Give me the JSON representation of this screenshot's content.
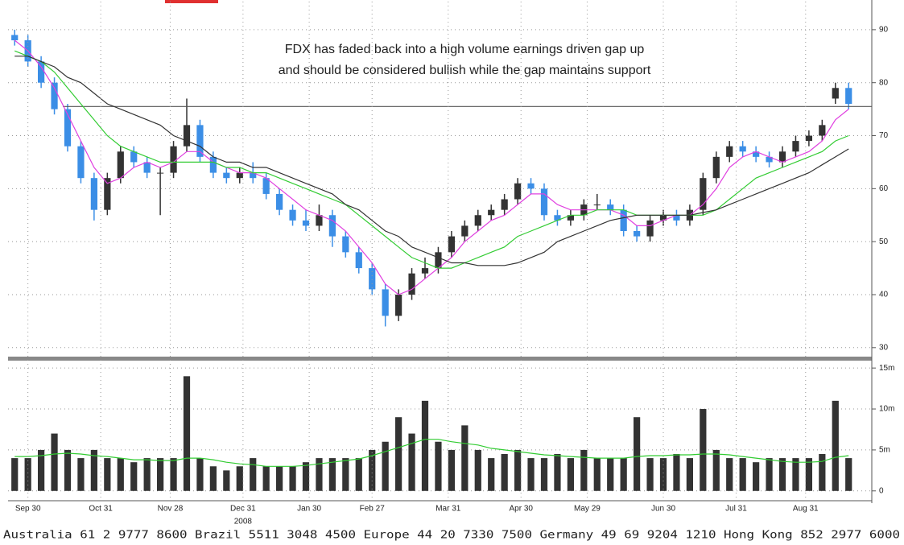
{
  "footer": "Australia 61 2 9777 8600 Brazil 5511 3048 4500 Europe 44 20 7330 7500 Germany 49 69 9204 1210 Hong Kong 852 2977 6000",
  "chart_data": [
    {
      "type": "candlestick",
      "annotation": [
        "FDX has faded back into a high volume earnings driven gap up",
        "and should be considered bullish while the gap maintains support"
      ],
      "x": [
        -4,
        0,
        4,
        8,
        12,
        16,
        20,
        24,
        28,
        32,
        36,
        40,
        44,
        48,
        52,
        56,
        60,
        64,
        68,
        72,
        76,
        80,
        84,
        88,
        92,
        96,
        100,
        104,
        108,
        112,
        116,
        120,
        124,
        128,
        132,
        136,
        140,
        144,
        148,
        152,
        156,
        160,
        164,
        168,
        172,
        176,
        180,
        184,
        188,
        192,
        196,
        200,
        204,
        208,
        212,
        216,
        220,
        224,
        228,
        232,
        236,
        240,
        244,
        248
      ],
      "open": [
        89,
        88,
        84,
        80,
        75,
        68,
        62,
        56,
        62,
        67,
        65,
        63,
        63,
        68,
        72,
        66,
        63,
        62,
        63,
        62,
        59,
        56,
        54,
        53,
        55,
        51,
        48,
        45,
        41,
        36,
        40,
        44,
        45,
        48,
        51,
        53,
        55,
        56,
        58,
        61,
        60,
        55,
        54,
        55,
        57,
        57,
        56,
        52,
        51,
        54,
        55,
        54,
        56,
        62,
        66,
        68,
        67,
        66,
        65,
        67,
        69,
        70,
        77,
        79
      ],
      "high": [
        90,
        89,
        85,
        81,
        76,
        69,
        63,
        63,
        68,
        68,
        66,
        64,
        69,
        77,
        73,
        67,
        64,
        64,
        65,
        63,
        60,
        57,
        56,
        57,
        56,
        52,
        49,
        46,
        42,
        41,
        45,
        47,
        49,
        52,
        54,
        56,
        57,
        59,
        62,
        62,
        61,
        56,
        56,
        58,
        59,
        58,
        57,
        53,
        55,
        56,
        56,
        57,
        63,
        67,
        69,
        69,
        68,
        67,
        68,
        70,
        71,
        73,
        80,
        80
      ],
      "low": [
        87,
        83,
        79,
        74,
        67,
        61,
        54,
        55,
        61,
        64,
        62,
        55,
        62,
        67,
        65,
        62,
        61,
        61,
        61,
        58,
        55,
        53,
        52,
        52,
        49,
        47,
        44,
        40,
        34,
        35,
        39,
        43,
        44,
        47,
        50,
        52,
        54,
        55,
        57,
        59,
        54,
        53,
        53,
        54,
        56,
        55,
        51,
        50,
        50,
        53,
        53,
        53,
        55,
        61,
        65,
        66,
        65,
        64,
        64,
        66,
        68,
        69,
        76,
        75
      ],
      "close": [
        88,
        84,
        80,
        75,
        68,
        62,
        56,
        62,
        67,
        65,
        63,
        63,
        68,
        72,
        66,
        63,
        62,
        63,
        62,
        59,
        56,
        54,
        53,
        55,
        51,
        48,
        45,
        41,
        36,
        40,
        44,
        45,
        48,
        51,
        53,
        55,
        56,
        58,
        61,
        60,
        55,
        54,
        55,
        57,
        57,
        56,
        52,
        51,
        54,
        55,
        54,
        56,
        62,
        66,
        68,
        67,
        66,
        65,
        67,
        69,
        70,
        72,
        79,
        76
      ],
      "up_color": "#333333",
      "down_color": "#3b8ee6",
      "series": [
        {
          "color": "#e040e0",
          "values": [
            88,
            86,
            83,
            79,
            74,
            69,
            64,
            61,
            62,
            64,
            65,
            64,
            65,
            67,
            67,
            65,
            64,
            63,
            63,
            62,
            60,
            58,
            56,
            55,
            54,
            52,
            49,
            46,
            42,
            40,
            41,
            43,
            45,
            47,
            50,
            52,
            54,
            55,
            57,
            59,
            59,
            57,
            56,
            56,
            56,
            56,
            55,
            53,
            53,
            54,
            55,
            55,
            57,
            60,
            64,
            66,
            67,
            66,
            65,
            66,
            67,
            69,
            73,
            75
          ]
        },
        {
          "color": "#33cc33",
          "values": [
            86,
            85,
            84,
            82,
            79,
            76,
            73,
            70,
            68,
            67,
            66,
            65,
            65,
            65,
            65,
            65,
            64,
            64,
            63,
            63,
            62,
            61,
            60,
            59,
            58,
            57,
            55,
            53,
            51,
            49,
            47,
            46,
            45,
            45,
            46,
            47,
            48,
            49,
            51,
            52,
            53,
            54,
            55,
            55,
            56,
            56,
            56,
            55,
            55,
            55,
            55,
            55,
            55,
            56,
            58,
            60,
            62,
            63,
            64,
            65,
            66,
            67,
            69,
            70
          ]
        },
        {
          "color": "#333333",
          "values": [
            85,
            85,
            84,
            83,
            81,
            80,
            78,
            76,
            75,
            74,
            73,
            72,
            70,
            69,
            68,
            66,
            65,
            65,
            64,
            64,
            63,
            62,
            61,
            60,
            59,
            57,
            56,
            54,
            52,
            51,
            49,
            48,
            47,
            46,
            46,
            45.5,
            45.5,
            45.5,
            46,
            47,
            48,
            50,
            51,
            52,
            53,
            54,
            54.5,
            55,
            55,
            55,
            55,
            55,
            55.5,
            56,
            57,
            58,
            59,
            60,
            61,
            62,
            63,
            64.5,
            66,
            67.5
          ]
        }
      ],
      "hline": 75.5,
      "xlim": [
        -6,
        255
      ],
      "ylim": [
        28.3,
        95.3
      ],
      "yticks": [
        30,
        40,
        50,
        60,
        70,
        80,
        90
      ],
      "grid": true
    },
    {
      "type": "bar",
      "x": [
        -4,
        0,
        4,
        8,
        12,
        16,
        20,
        24,
        28,
        32,
        36,
        40,
        44,
        48,
        52,
        56,
        60,
        64,
        68,
        72,
        76,
        80,
        84,
        88,
        92,
        96,
        100,
        104,
        108,
        112,
        116,
        120,
        124,
        128,
        132,
        136,
        140,
        144,
        148,
        152,
        156,
        160,
        164,
        168,
        172,
        176,
        180,
        184,
        188,
        192,
        196,
        200,
        204,
        208,
        212,
        216,
        220,
        224,
        228,
        232,
        236,
        240,
        244,
        248
      ],
      "values": [
        4,
        4,
        5,
        7,
        5,
        4,
        5,
        4,
        4,
        3.5,
        4,
        4,
        4,
        14,
        4,
        3,
        2.5,
        3,
        4,
        3,
        3,
        3,
        3.5,
        4,
        4,
        4,
        4,
        5,
        6,
        9,
        7,
        11,
        6,
        5,
        8,
        5,
        4,
        4.5,
        5,
        4,
        4,
        4.5,
        4,
        5,
        4,
        4,
        4,
        9,
        4,
        4,
        4.5,
        4,
        10,
        5,
        4,
        4,
        3.5,
        4,
        4,
        4,
        4,
        4.5,
        11,
        4
      ],
      "color": "#333333",
      "series": [
        {
          "color": "#33cc33",
          "values": [
            4.2,
            4.2,
            4.3,
            4.5,
            4.6,
            4.5,
            4.3,
            4.2,
            4,
            3.8,
            3.8,
            3.7,
            3.7,
            4,
            4,
            3.8,
            3.5,
            3.3,
            3.2,
            3,
            3,
            3,
            3.1,
            3.3,
            3.5,
            3.7,
            3.9,
            4.3,
            4.8,
            5.3,
            5.8,
            6.3,
            6.3,
            6,
            5.8,
            5.6,
            5.2,
            5,
            4.8,
            4.6,
            4.4,
            4.3,
            4.2,
            4.1,
            4,
            4,
            4,
            4.2,
            4.3,
            4.3,
            4.4,
            4.4,
            4.5,
            4.5,
            4.4,
            4.2,
            4,
            3.8,
            3.6,
            3.5,
            3.5,
            3.6,
            4.1,
            4.3
          ]
        }
      ],
      "xlim": [
        -6,
        255
      ],
      "ylim": [
        -1.2,
        15.9
      ],
      "yticks": [
        {
          "value": 15,
          "label": "15m"
        },
        {
          "value": 10,
          "label": "10m"
        },
        {
          "value": 5,
          "label": "5m"
        },
        0
      ],
      "xticks": [
        {
          "value": 0,
          "label": "Sep 30"
        },
        {
          "value": 22,
          "label": "Oct 31"
        },
        {
          "value": 43,
          "label": "Nov 28"
        },
        {
          "value": 65,
          "label": "Dec 31"
        },
        {
          "value": 85,
          "label": "Jan 30"
        },
        {
          "value": 104,
          "label": "Feb 27"
        },
        {
          "value": 127,
          "label": "Mar 31"
        },
        {
          "value": 149,
          "label": "Apr 30"
        },
        {
          "value": 169,
          "label": "May 29"
        },
        {
          "value": 192,
          "label": "Jun 30"
        },
        {
          "value": 214,
          "label": "Jul 31"
        },
        {
          "value": 235,
          "label": "Aug 31"
        }
      ],
      "year_label": "2008",
      "grid": true
    }
  ]
}
